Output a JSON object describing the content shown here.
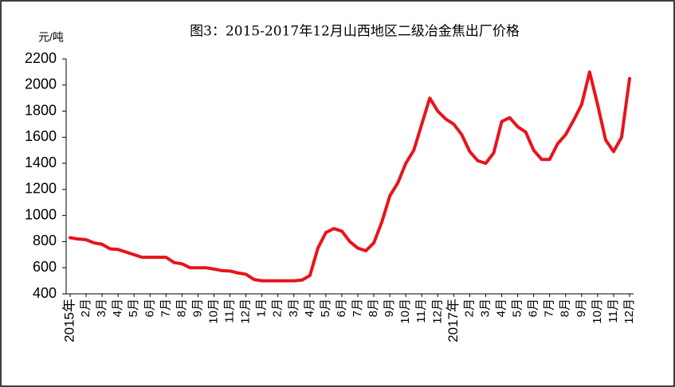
{
  "chart_data": {
    "type": "line",
    "title": "图3：2015-2017年12月山西地区二级冶金焦出厂价格",
    "y_label": "元/吨",
    "categories": [
      "2015年",
      null,
      "2月",
      null,
      "3月",
      null,
      "4月",
      null,
      "5月",
      null,
      "6月",
      null,
      "7月",
      null,
      "8月",
      null,
      "9月",
      null,
      "10月",
      null,
      "11月",
      null,
      "12月",
      null,
      "1月",
      null,
      "2月",
      null,
      "3月",
      null,
      "4月",
      null,
      "5月",
      null,
      "6月",
      null,
      "7月",
      null,
      "8月",
      null,
      "9月",
      null,
      "10月",
      null,
      "11月",
      null,
      "12月",
      null,
      "2017年",
      null,
      "2月",
      null,
      "3月",
      null,
      "4月",
      null,
      "5月",
      null,
      "6月",
      null,
      "7月",
      null,
      "8月",
      null,
      "9月",
      null,
      "10月",
      null,
      "11月",
      null,
      "12月"
    ],
    "series": [
      {
        "name": "二级冶金焦出厂价格",
        "color": "#e8141b",
        "values": [
          830,
          820,
          815,
          790,
          780,
          745,
          740,
          720,
          700,
          680,
          680,
          680,
          680,
          640,
          630,
          600,
          600,
          600,
          590,
          578,
          575,
          560,
          550,
          510,
          500,
          500,
          500,
          500,
          500,
          505,
          540,
          750,
          870,
          900,
          880,
          800,
          750,
          730,
          790,
          950,
          1150,
          1250,
          1400,
          1500,
          1700,
          1900,
          1800,
          1740,
          1700,
          1620,
          1490,
          1420,
          1400,
          1480,
          1720,
          1750,
          1680,
          1640,
          1500,
          1430,
          1430,
          1550,
          1620,
          1730,
          1850,
          2100,
          1850,
          1580,
          1490,
          1600,
          2050
        ]
      }
    ],
    "ylim": [
      400,
      2200
    ],
    "yticks": [
      400,
      600,
      800,
      1000,
      1200,
      1400,
      1600,
      1800,
      2000,
      2200
    ]
  }
}
